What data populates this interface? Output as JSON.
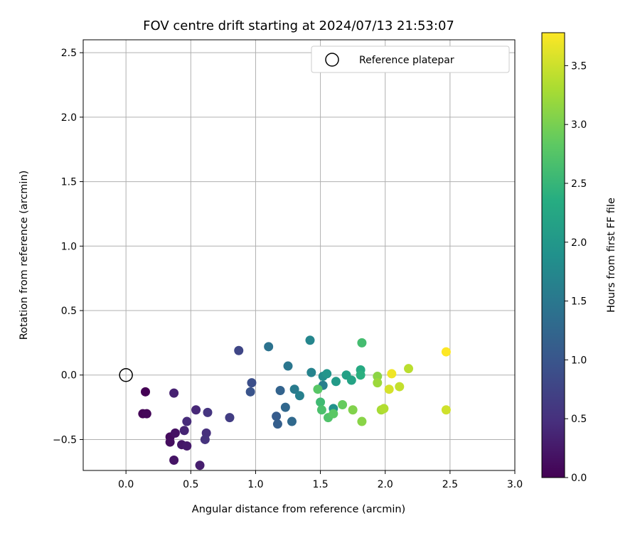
{
  "chart_data": {
    "type": "scatter",
    "title": "FOV centre drift starting at 2024/07/13 21:53:07",
    "xlabel": "Angular distance from reference (arcmin)",
    "ylabel": "Rotation from reference (arcmin)",
    "xlim": [
      -0.33,
      3.0
    ],
    "ylim": [
      -0.74,
      2.6
    ],
    "xticks": [
      0.0,
      0.5,
      1.0,
      1.5,
      2.0,
      2.5,
      3.0
    ],
    "xtick_labels": [
      "0.0",
      "0.5",
      "1.0",
      "1.5",
      "2.0",
      "2.5",
      "3.0"
    ],
    "yticks": [
      -0.5,
      0.0,
      0.5,
      1.0,
      1.5,
      2.0,
      2.5
    ],
    "ytick_labels": [
      "−0.5",
      "0.0",
      "0.5",
      "1.0",
      "1.5",
      "2.0",
      "2.5"
    ],
    "grid": true,
    "legend": {
      "placement": "top-right",
      "entries": [
        "Reference platepar"
      ]
    },
    "reference_point": {
      "x": 0.0,
      "y": 0.0
    },
    "colorbar": {
      "label": "Hours from first FF file",
      "colormap": "viridis",
      "range": [
        0.0,
        3.78
      ],
      "ticks": [
        0.0,
        0.5,
        1.0,
        1.5,
        2.0,
        2.5,
        3.0,
        3.5
      ],
      "tick_labels": [
        "0.0",
        "0.5",
        "1.0",
        "1.5",
        "2.0",
        "2.5",
        "3.0",
        "3.5"
      ]
    },
    "series": [
      {
        "points": [
          {
            "x": 0.15,
            "y": -0.13,
            "c": 0.0
          },
          {
            "x": 0.13,
            "y": -0.3,
            "c": 0.03
          },
          {
            "x": 0.16,
            "y": -0.3,
            "c": 0.06
          },
          {
            "x": 0.34,
            "y": -0.48,
            "c": 0.1
          },
          {
            "x": 0.34,
            "y": -0.52,
            "c": 0.13
          },
          {
            "x": 0.38,
            "y": -0.45,
            "c": 0.16
          },
          {
            "x": 0.37,
            "y": -0.66,
            "c": 0.2
          },
          {
            "x": 0.43,
            "y": -0.54,
            "c": 0.23
          },
          {
            "x": 0.47,
            "y": -0.55,
            "c": 0.26
          },
          {
            "x": 0.57,
            "y": -0.7,
            "c": 0.3
          },
          {
            "x": 0.37,
            "y": -0.14,
            "c": 0.33
          },
          {
            "x": 0.45,
            "y": -0.43,
            "c": 0.37
          },
          {
            "x": 0.54,
            "y": -0.27,
            "c": 0.4
          },
          {
            "x": 0.47,
            "y": -0.36,
            "c": 0.44
          },
          {
            "x": 0.62,
            "y": -0.45,
            "c": 0.48
          },
          {
            "x": 0.61,
            "y": -0.5,
            "c": 0.52
          },
          {
            "x": 0.63,
            "y": -0.29,
            "c": 0.56
          },
          {
            "x": 0.8,
            "y": -0.33,
            "c": 0.66
          },
          {
            "x": 0.87,
            "y": 0.19,
            "c": 0.78
          },
          {
            "x": 0.97,
            "y": -0.06,
            "c": 0.9
          },
          {
            "x": 0.96,
            "y": -0.13,
            "c": 0.98
          },
          {
            "x": 1.16,
            "y": -0.32,
            "c": 1.1
          },
          {
            "x": 1.17,
            "y": -0.38,
            "c": 1.14
          },
          {
            "x": 1.19,
            "y": -0.12,
            "c": 1.2
          },
          {
            "x": 1.23,
            "y": -0.25,
            "c": 1.25
          },
          {
            "x": 1.28,
            "y": -0.36,
            "c": 1.28
          },
          {
            "x": 1.1,
            "y": 0.22,
            "c": 1.42
          },
          {
            "x": 1.25,
            "y": 0.07,
            "c": 1.48
          },
          {
            "x": 1.3,
            "y": -0.11,
            "c": 1.55
          },
          {
            "x": 1.34,
            "y": -0.16,
            "c": 1.63
          },
          {
            "x": 1.42,
            "y": 0.27,
            "c": 1.72
          },
          {
            "x": 1.43,
            "y": 0.02,
            "c": 1.68
          },
          {
            "x": 1.52,
            "y": -0.08,
            "c": 1.6
          },
          {
            "x": 1.52,
            "y": -0.01,
            "c": 1.85
          },
          {
            "x": 1.55,
            "y": 0.01,
            "c": 1.95
          },
          {
            "x": 1.62,
            "y": -0.05,
            "c": 2.05
          },
          {
            "x": 1.6,
            "y": -0.26,
            "c": 1.9
          },
          {
            "x": 1.7,
            "y": 0.0,
            "c": 2.15
          },
          {
            "x": 1.74,
            "y": -0.04,
            "c": 2.2
          },
          {
            "x": 1.81,
            "y": 0.04,
            "c": 2.3
          },
          {
            "x": 1.81,
            "y": 0.0,
            "c": 2.4
          },
          {
            "x": 1.82,
            "y": 0.25,
            "c": 2.62
          },
          {
            "x": 1.5,
            "y": -0.21,
            "c": 2.58
          },
          {
            "x": 1.51,
            "y": -0.27,
            "c": 2.68
          },
          {
            "x": 1.48,
            "y": -0.11,
            "c": 2.78
          },
          {
            "x": 1.56,
            "y": -0.33,
            "c": 2.72
          },
          {
            "x": 1.6,
            "y": -0.3,
            "c": 2.8
          },
          {
            "x": 1.67,
            "y": -0.23,
            "c": 2.88
          },
          {
            "x": 1.75,
            "y": -0.27,
            "c": 3.05
          },
          {
            "x": 1.82,
            "y": -0.36,
            "c": 3.1
          },
          {
            "x": 1.94,
            "y": -0.01,
            "c": 3.12
          },
          {
            "x": 1.94,
            "y": -0.06,
            "c": 3.22
          },
          {
            "x": 1.97,
            "y": -0.27,
            "c": 3.28
          },
          {
            "x": 1.99,
            "y": -0.26,
            "c": 3.35
          },
          {
            "x": 2.03,
            "y": -0.11,
            "c": 3.55
          },
          {
            "x": 2.05,
            "y": 0.01,
            "c": 3.7
          },
          {
            "x": 2.11,
            "y": -0.09,
            "c": 3.45
          },
          {
            "x": 2.18,
            "y": 0.05,
            "c": 3.4
          },
          {
            "x": 2.47,
            "y": -0.27,
            "c": 3.52
          },
          {
            "x": 2.47,
            "y": 0.18,
            "c": 3.78
          }
        ]
      }
    ]
  }
}
